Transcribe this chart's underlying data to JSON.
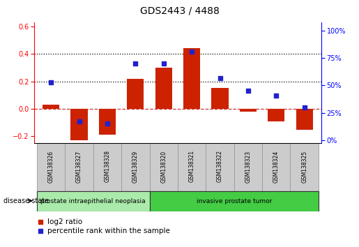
{
  "title": "GDS2443 / 4488",
  "samples": [
    "GSM138326",
    "GSM138327",
    "GSM138328",
    "GSM138329",
    "GSM138320",
    "GSM138321",
    "GSM138322",
    "GSM138323",
    "GSM138324",
    "GSM138325"
  ],
  "log2_ratio": [
    0.03,
    -0.23,
    -0.19,
    0.22,
    0.3,
    0.44,
    0.15,
    -0.02,
    -0.09,
    -0.15
  ],
  "percentile_pct": [
    53,
    17,
    15,
    70,
    70,
    81,
    57,
    45,
    41,
    30
  ],
  "bar_color": "#cc2200",
  "dot_color": "#2222cc",
  "groups": [
    {
      "label": "prostate intraepithelial neoplasia",
      "start": 0,
      "end": 4,
      "color": "#aaeaaa"
    },
    {
      "label": "invasive prostate tumor",
      "start": 4,
      "end": 10,
      "color": "#44cc44"
    }
  ],
  "ylim_left": [
    -0.25,
    0.63
  ],
  "ylim_right": [
    -3,
    108
  ],
  "yticks_left": [
    -0.2,
    0.0,
    0.2,
    0.4,
    0.6
  ],
  "yticks_right": [
    0,
    25,
    50,
    75,
    100
  ],
  "legend_items": [
    {
      "label": "log2 ratio",
      "color": "#cc2200"
    },
    {
      "label": "percentile rank within the sample",
      "color": "#2222cc"
    }
  ],
  "disease_state_label": "disease state",
  "background_color": "#ffffff"
}
